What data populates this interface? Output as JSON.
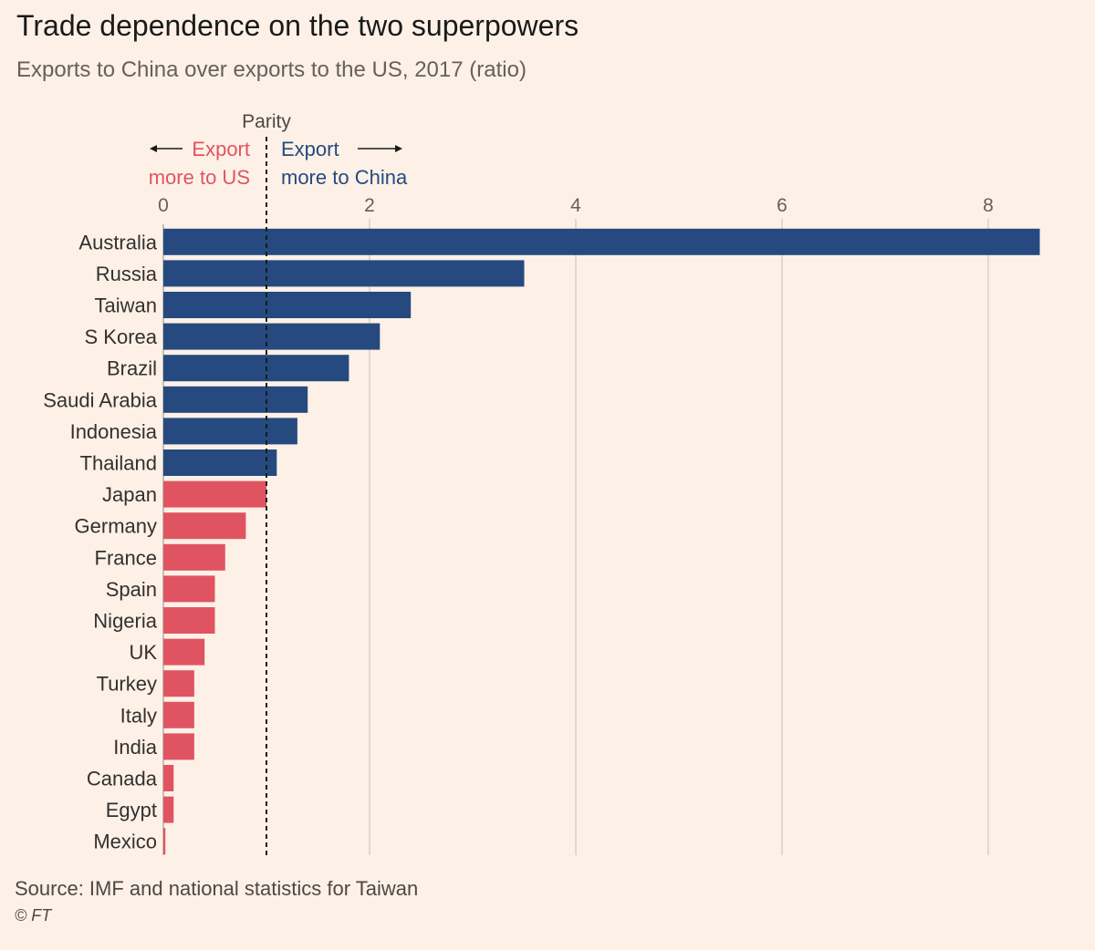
{
  "header": {
    "title": "Trade dependence on the two superpowers",
    "subtitle": "Exports to China over exports to the US, 2017 (ratio)"
  },
  "annotations": {
    "parity": "Parity",
    "left_line1": "Export",
    "left_line2": "more to US",
    "right_line1": "Export",
    "right_line2": "more to China"
  },
  "footer": {
    "source": "Source: IMF and national statistics for Taiwan",
    "credit": "© FT"
  },
  "colors": {
    "china": "#264a7f",
    "us": "#e05462",
    "background": "#fdf1e7",
    "grid": "#d9cfc7"
  },
  "chart_data": {
    "type": "bar",
    "orientation": "horizontal",
    "categories": [
      "Australia",
      "Russia",
      "Taiwan",
      "S Korea",
      "Brazil",
      "Saudi Arabia",
      "Indonesia",
      "Thailand",
      "Japan",
      "Germany",
      "France",
      "Spain",
      "Nigeria",
      "UK",
      "Turkey",
      "Italy",
      "India",
      "Canada",
      "Egypt",
      "Mexico"
    ],
    "values": [
      8.5,
      3.5,
      2.4,
      2.1,
      1.8,
      1.4,
      1.3,
      1.1,
      1.0,
      0.8,
      0.6,
      0.5,
      0.5,
      0.4,
      0.3,
      0.3,
      0.3,
      0.1,
      0.1,
      0.02
    ],
    "xticks": [
      0,
      2,
      4,
      6,
      8
    ],
    "xlim": [
      0,
      8.5
    ],
    "parity_value": 1,
    "grid": true
  }
}
